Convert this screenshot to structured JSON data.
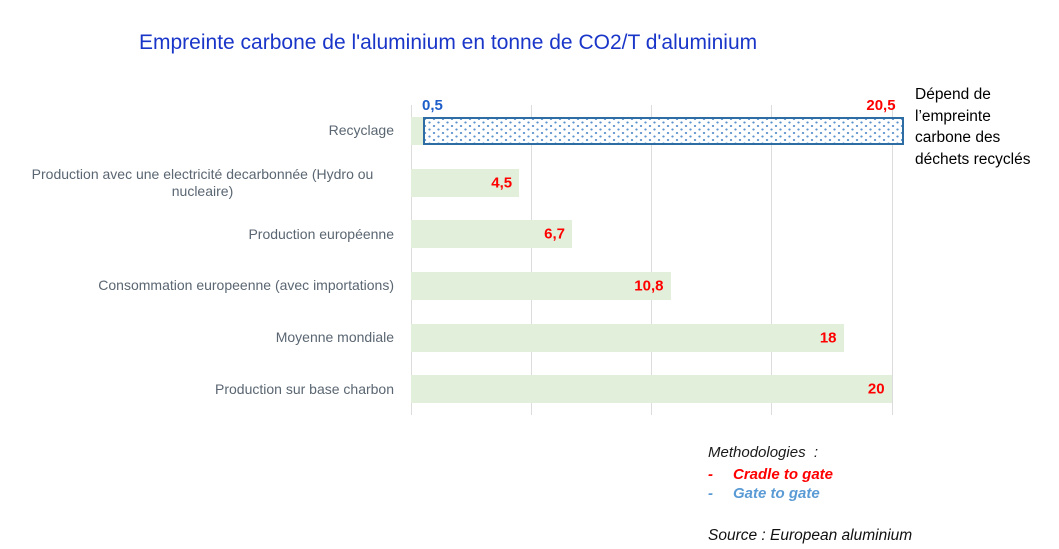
{
  "title": "Empreinte carbone de l'aluminium en tonne de CO2/T d'aluminium",
  "annotation": {
    "text": "Dépend de l’empreinte carbone des déchets recyclés",
    "lines": [
      "Dépend de",
      "l’empreinte",
      "carbone des",
      "déchets recyclés"
    ]
  },
  "legend": {
    "heading": "Methodologies  :",
    "bullet": "-",
    "items": [
      {
        "label": "Cradle to gate",
        "color": "#ff0000"
      },
      {
        "label": "Gate to gate",
        "color": "#5b9bd5"
      }
    ]
  },
  "source": "Source : European aluminium",
  "colors": {
    "title_blue": "#1a36c9",
    "bar_green": "#e2efda",
    "value_red": "#ff0000",
    "value_blue": "#1c5dc9",
    "dotted_border": "#2e6da4",
    "dot_blue": "#5c93cd",
    "gridline": "#dcdcdc",
    "category_label": "#5a6672",
    "cradle_red": "#ff0000",
    "gate_blue": "#5b9bd5"
  },
  "chart_data": {
    "type": "bar",
    "orientation": "horizontal",
    "title": "Empreinte carbone de l'aluminium en tonne de CO2/T d'aluminium",
    "xlabel": "",
    "ylabel": "",
    "xlim": [
      0,
      20.6
    ],
    "gridlines": [
      0,
      5,
      10,
      15,
      20
    ],
    "axis_tick_labels_visible": false,
    "legend_position": "bottom-right",
    "categories": [
      "Recyclage",
      "Production avec une electricité decarbonnée (Hydro ou nucleaire)",
      "Production européenne",
      "Consommation europeenne (avec importations)",
      "Moyenne mondiale",
      "Production sur base charbon"
    ],
    "values": [
      [
        0.5,
        20.5
      ],
      4.5,
      6.7,
      10.8,
      18,
      20
    ],
    "rows": [
      {
        "label": "Recyclage",
        "type": "range",
        "style": "dotted",
        "base_end": 0.5,
        "start": 0.5,
        "end": 20.5,
        "start_label": "0,5",
        "end_label": "20,5"
      },
      {
        "label": "Production avec une electricité decarbonnée (Hydro ou nucleaire)",
        "value": 4.5,
        "value_label": "4,5"
      },
      {
        "label": "Production européenne",
        "value": 6.7,
        "value_label": "6,7"
      },
      {
        "label": "Consommation europeenne (avec importations)",
        "value": 10.8,
        "value_label": "10,8"
      },
      {
        "label": "Moyenne mondiale",
        "value": 18,
        "value_label": "18"
      },
      {
        "label": "Production sur base charbon",
        "value": 20,
        "value_label": "20"
      }
    ]
  }
}
